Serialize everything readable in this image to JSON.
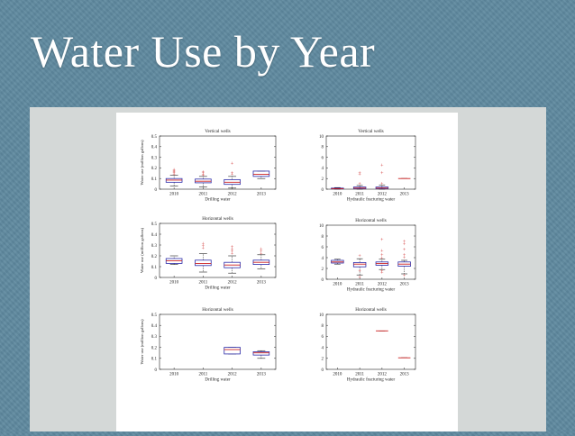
{
  "slide": {
    "title": "Water Use by Year"
  },
  "chart_data": [
    {
      "type": "box",
      "title": "Vertical wells",
      "xlabel": "Drilling water",
      "ylabel": "Water use (million gallons)",
      "ylim": [
        0,
        0.5
      ],
      "yticks": [
        "0",
        "0.1",
        "0.2",
        "0.3",
        "0.4",
        "0.5"
      ],
      "categories": [
        "2010",
        "2011",
        "2012",
        "2013"
      ],
      "boxes": [
        {
          "category": "2010",
          "whisker_low": 0.03,
          "q1": 0.065,
          "median": 0.085,
          "q3": 0.1,
          "whisker_high": 0.13,
          "outliers": [
            0.14,
            0.15,
            0.16,
            0.17,
            0.18
          ]
        },
        {
          "category": "2011",
          "whisker_low": 0.02,
          "q1": 0.06,
          "median": 0.075,
          "q3": 0.095,
          "whisker_high": 0.12,
          "outliers": [
            0.13,
            0.14,
            0.15,
            0.16
          ]
        },
        {
          "category": "2012",
          "whisker_low": 0.01,
          "q1": 0.045,
          "median": 0.065,
          "q3": 0.09,
          "whisker_high": 0.12,
          "outliers": [
            0.14,
            0.15,
            0.24
          ]
        },
        {
          "category": "2013",
          "whisker_low": 0.1,
          "q1": 0.12,
          "median": 0.14,
          "q3": 0.17,
          "whisker_high": 0.17,
          "outliers": []
        }
      ]
    },
    {
      "type": "box",
      "title": "Vertical wells",
      "xlabel": "Hydraulic fracturing water",
      "ylabel": "",
      "ylim": [
        0,
        10
      ],
      "yticks": [
        "0",
        "2",
        "4",
        "6",
        "8",
        "10"
      ],
      "categories": [
        "2010",
        "2011",
        "2012",
        "2013"
      ],
      "boxes": [
        {
          "category": "2010",
          "whisker_low": 0.0,
          "q1": 0.05,
          "median": 0.1,
          "q3": 0.2,
          "whisker_high": 0.3,
          "outliers": []
        },
        {
          "category": "2011",
          "whisker_low": 0.0,
          "q1": 0.1,
          "median": 0.2,
          "q3": 0.4,
          "whisker_high": 0.7,
          "outliers": [
            1.0,
            2.8,
            3.0
          ]
        },
        {
          "category": "2012",
          "whisker_low": 0.0,
          "q1": 0.1,
          "median": 0.2,
          "q3": 0.4,
          "whisker_high": 0.8,
          "outliers": [
            1.0,
            3.0,
            4.5
          ]
        },
        {
          "category": "2013",
          "whisker_low": 2.0,
          "q1": 2.0,
          "median": 2.0,
          "q3": 2.0,
          "whisker_high": 2.0,
          "outliers": []
        }
      ]
    },
    {
      "type": "box",
      "title": "Horizontal wells",
      "xlabel": "Drilling water",
      "ylabel": "Water use (million gallons)",
      "ylim": [
        0,
        0.5
      ],
      "yticks": [
        "0",
        "0.1",
        "0.2",
        "0.3",
        "0.4",
        "0.5"
      ],
      "categories": [
        "2010",
        "2011",
        "2012",
        "2013"
      ],
      "boxes": [
        {
          "category": "2010",
          "whisker_low": 0.12,
          "q1": 0.13,
          "median": 0.155,
          "q3": 0.175,
          "whisker_high": 0.2,
          "outliers": []
        },
        {
          "category": "2011",
          "whisker_low": 0.05,
          "q1": 0.11,
          "median": 0.13,
          "q3": 0.16,
          "whisker_high": 0.22,
          "outliers": [
            0.27,
            0.29,
            0.31
          ]
        },
        {
          "category": "2012",
          "whisker_low": 0.04,
          "q1": 0.09,
          "median": 0.115,
          "q3": 0.14,
          "whisker_high": 0.2,
          "outliers": [
            0.22,
            0.24,
            0.26,
            0.28
          ]
        },
        {
          "category": "2013",
          "whisker_low": 0.08,
          "q1": 0.12,
          "median": 0.14,
          "q3": 0.16,
          "whisker_high": 0.21,
          "outliers": [
            0.22,
            0.24,
            0.26
          ]
        }
      ]
    },
    {
      "type": "box",
      "title": "Horizontal wells",
      "xlabel": "Hydraulic fracturing water",
      "ylabel": "",
      "ylim": [
        0,
        10
      ],
      "yticks": [
        "0",
        "2",
        "4",
        "6",
        "8",
        "10"
      ],
      "categories": [
        "2010",
        "2011",
        "2012",
        "2013"
      ],
      "boxes": [
        {
          "category": "2010",
          "whisker_low": 2.8,
          "q1": 3.0,
          "median": 3.2,
          "q3": 3.5,
          "whisker_high": 3.7,
          "outliers": []
        },
        {
          "category": "2011",
          "whisker_low": 0.8,
          "q1": 2.3,
          "median": 2.8,
          "q3": 3.1,
          "whisker_high": 3.8,
          "outliers": [
            0.4,
            1.5,
            4.3
          ]
        },
        {
          "category": "2012",
          "whisker_low": 1.8,
          "q1": 2.6,
          "median": 2.9,
          "q3": 3.2,
          "whisker_high": 3.7,
          "outliers": [
            1.2,
            1.5,
            3.9,
            4.5,
            5.2,
            7.3
          ]
        },
        {
          "category": "2013",
          "whisker_low": 1.0,
          "q1": 2.4,
          "median": 2.8,
          "q3": 3.2,
          "whisker_high": 3.5,
          "outliers": [
            0.6,
            4.0,
            4.5,
            5.5,
            6.5,
            7.0
          ]
        }
      ]
    },
    {
      "type": "box",
      "title": "Horizontal wells",
      "xlabel": "Drilling water",
      "ylabel": "Water use (million gallons)",
      "ylim": [
        0,
        0.5
      ],
      "yticks": [
        "0",
        "0.1",
        "0.2",
        "0.3",
        "0.4",
        "0.5"
      ],
      "categories": [
        "2010",
        "2011",
        "2012",
        "2013"
      ],
      "boxes": [
        {
          "category": "2012",
          "whisker_low": 0.14,
          "q1": 0.14,
          "median": 0.18,
          "q3": 0.2,
          "whisker_high": 0.2,
          "outliers": []
        },
        {
          "category": "2013",
          "whisker_low": 0.1,
          "q1": 0.13,
          "median": 0.15,
          "q3": 0.16,
          "whisker_high": 0.17,
          "outliers": []
        }
      ]
    },
    {
      "type": "box",
      "title": "Horizontal wells",
      "xlabel": "Hydraulic fracturing water",
      "ylabel": "",
      "ylim": [
        0,
        10
      ],
      "yticks": [
        "0",
        "2",
        "4",
        "6",
        "8",
        "10"
      ],
      "categories": [
        "2010",
        "2011",
        "2012",
        "2013"
      ],
      "boxes": [
        {
          "category": "2012",
          "whisker_low": 7.0,
          "q1": 7.0,
          "median": 7.0,
          "q3": 7.0,
          "whisker_high": 7.0,
          "outliers": []
        },
        {
          "category": "2013",
          "whisker_low": 2.1,
          "q1": 2.1,
          "median": 2.1,
          "q3": 2.1,
          "whisker_high": 2.1,
          "outliers": []
        }
      ]
    }
  ],
  "colors": {
    "box": "#2b2ba8",
    "median": "#cc1f1f",
    "outlier": "#cc1f1f",
    "whisker": "#222222"
  }
}
